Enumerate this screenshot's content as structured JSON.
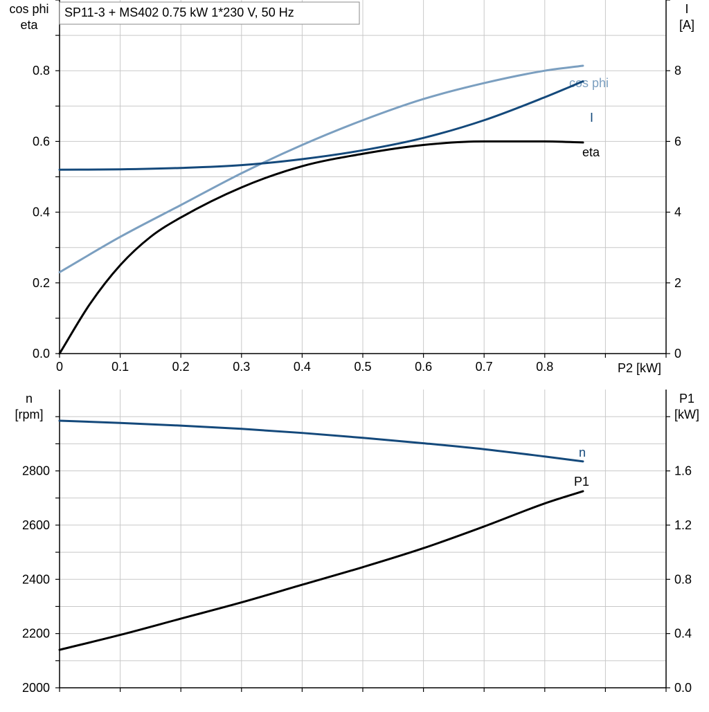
{
  "title": "SP11-3 + MS402   0.75 kW   1*230 V, 50 Hz",
  "colors": {
    "cosphi": "#7b9fc0",
    "current": "#14497b",
    "eta": "#000000",
    "speed": "#14497b",
    "p1": "#000000",
    "grid": "#c8c8c8"
  },
  "chart_data": [
    {
      "type": "line",
      "grid": true,
      "x_axis": {
        "label": "P2 [kW]",
        "range": [
          0,
          1.0
        ],
        "ticks": [
          0,
          0.1,
          0.2,
          0.3,
          0.4,
          0.5,
          0.6,
          0.7,
          0.8,
          0.9,
          1.0
        ],
        "tick_labels": [
          "0",
          "0.1",
          "0.2",
          "0.3",
          "0.4",
          "0.5",
          "0.6",
          "0.7",
          "0.8",
          "",
          ""
        ]
      },
      "y_left": {
        "label_line1": "cos phi",
        "label_line2": "eta",
        "range": [
          0,
          1.0
        ],
        "ticks": [
          0,
          0.1,
          0.2,
          0.3,
          0.4,
          0.5,
          0.6,
          0.7,
          0.8,
          0.9,
          1.0
        ],
        "tick_labels": [
          "0.0",
          "",
          "0.2",
          "",
          "0.4",
          "",
          "0.6",
          "",
          "0.8",
          "",
          ""
        ]
      },
      "y_right": {
        "label_line1": "I",
        "label_line2": "[A]",
        "range": [
          0,
          10
        ],
        "ticks": [
          0,
          2,
          4,
          6,
          8,
          10
        ],
        "tick_labels": [
          "0",
          "2",
          "4",
          "6",
          "8",
          ""
        ]
      },
      "series": [
        {
          "name": "cos phi",
          "key": "cosphi",
          "axis": "left",
          "x": [
            0,
            0.1,
            0.2,
            0.3,
            0.4,
            0.5,
            0.6,
            0.7,
            0.8,
            0.863
          ],
          "y": [
            0.23,
            0.33,
            0.42,
            0.51,
            0.59,
            0.66,
            0.72,
            0.765,
            0.8,
            0.814
          ]
        },
        {
          "name": "I",
          "key": "current",
          "axis": "right",
          "x": [
            0,
            0.1,
            0.2,
            0.3,
            0.4,
            0.5,
            0.6,
            0.7,
            0.8,
            0.863
          ],
          "y": [
            5.2,
            5.21,
            5.25,
            5.33,
            5.5,
            5.75,
            6.1,
            6.6,
            7.25,
            7.7
          ]
        },
        {
          "name": "eta",
          "key": "eta",
          "axis": "left",
          "x": [
            0,
            0.05,
            0.1,
            0.15,
            0.2,
            0.3,
            0.4,
            0.5,
            0.6,
            0.7,
            0.8,
            0.863
          ],
          "y": [
            0.0,
            0.14,
            0.25,
            0.33,
            0.385,
            0.47,
            0.53,
            0.565,
            0.59,
            0.6,
            0.6,
            0.597
          ]
        }
      ]
    },
    {
      "type": "line",
      "grid": true,
      "x_axis": {
        "label": "",
        "range": [
          0,
          1.0
        ],
        "ticks": [
          0,
          0.1,
          0.2,
          0.3,
          0.4,
          0.5,
          0.6,
          0.7,
          0.8,
          0.9,
          1.0
        ],
        "tick_labels": []
      },
      "y_left": {
        "label_line1": "n",
        "label_line2": "[rpm]",
        "range": [
          2000,
          3100
        ],
        "ticks": [
          2000,
          2100,
          2200,
          2300,
          2400,
          2500,
          2600,
          2700,
          2800,
          2900,
          3000
        ],
        "tick_labels": [
          "2000",
          "",
          "2200",
          "",
          "2400",
          "",
          "2600",
          "",
          "2800",
          "",
          ""
        ]
      },
      "y_right": {
        "label_line1": "P1",
        "label_line2": "[kW]",
        "range": [
          0,
          2.2
        ],
        "ticks": [
          0,
          0.4,
          0.8,
          1.2,
          1.6,
          2.0
        ],
        "tick_labels": [
          "0.0",
          "0.4",
          "0.8",
          "1.2",
          "1.6",
          ""
        ]
      },
      "series": [
        {
          "name": "n",
          "key": "speed",
          "axis": "left",
          "x": [
            0,
            0.1,
            0.2,
            0.3,
            0.4,
            0.5,
            0.6,
            0.7,
            0.8,
            0.863
          ],
          "y": [
            2985,
            2977,
            2967,
            2955,
            2940,
            2922,
            2902,
            2880,
            2853,
            2835
          ]
        },
        {
          "name": "P1",
          "key": "p1",
          "axis": "right",
          "x": [
            0,
            0.1,
            0.2,
            0.3,
            0.4,
            0.5,
            0.6,
            0.7,
            0.8,
            0.863
          ],
          "y": [
            0.28,
            0.39,
            0.51,
            0.63,
            0.76,
            0.89,
            1.03,
            1.19,
            1.36,
            1.45
          ]
        }
      ]
    }
  ]
}
